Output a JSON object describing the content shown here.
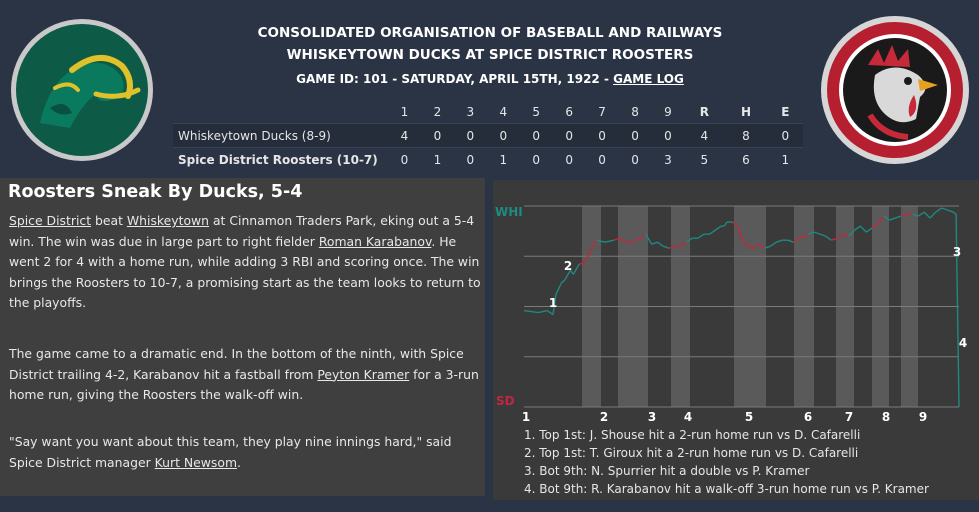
{
  "header": {
    "league": "CONSOLIDATED ORGANISATION OF BASEBALL AND RAILWAYS",
    "matchup": "WHISKEYTOWN DUCKS AT SPICE DISTRICT ROOSTERS",
    "game_info": "GAME ID: 101 - SATURDAY, APRIL 15TH, 1922 - ",
    "game_log_link": "GAME LOG"
  },
  "logos": {
    "away": {
      "icon": "duck-logo",
      "colors": [
        "#0f5a48",
        "#e3c12a"
      ]
    },
    "home": {
      "icon": "rooster-logo",
      "colors": [
        "#b51f2f",
        "#1b1b1b"
      ]
    }
  },
  "boxscore": {
    "columns": [
      "1",
      "2",
      "3",
      "4",
      "5",
      "6",
      "7",
      "8",
      "9",
      "R",
      "H",
      "E"
    ],
    "away": {
      "team": "Whiskeytown Ducks (8-9)",
      "values": [
        "4",
        "0",
        "0",
        "0",
        "0",
        "0",
        "0",
        "0",
        "0",
        "4",
        "8",
        "0"
      ]
    },
    "home": {
      "team": "Spice District Roosters (10-7)",
      "values": [
        "0",
        "1",
        "0",
        "1",
        "0",
        "0",
        "0",
        "0",
        "3",
        "5",
        "6",
        "1"
      ]
    }
  },
  "story": {
    "headline": "Roosters Sneak By Ducks, 5-4",
    "p1": {
      "home_link": "Spice District",
      "t1": " beat ",
      "away_link": "Whiskeytown",
      "t2": " at Cinnamon Traders Park, eking out a 5-4 win. The win was due in large part to right fielder ",
      "player_link": "Roman Karabanov",
      "t3": ". He went 2 for 4 with a home run, while adding 3 RBI and scoring once. The win brings the Roosters to 10-7, a promising start as the team looks to return to the playoffs."
    },
    "p2": {
      "t1": "The game came to a dramatic end. In the bottom of the ninth, with Spice District trailing 4-2, Karabanov hit a fastball from ",
      "pitcher_link": "Peyton Kramer",
      "t2": " for a 3-run home run, giving the Roosters the walk-off win."
    },
    "p3": {
      "t1": "\"Say want you want about this team, they play nine innings hard,\" said Spice District manager ",
      "manager_link": "Kurt Newsom",
      "t2": "."
    }
  },
  "chart_data": {
    "type": "line",
    "y_top_label": "WHI",
    "y_bottom_label": "SD",
    "innings": [
      "1",
      "2",
      "3",
      "4",
      "5",
      "6",
      "7",
      "8",
      "9"
    ],
    "colors": {
      "away": "#1f8a80",
      "home": "#c0283e",
      "shaded": "#5a5a5a"
    },
    "note": "win probability for Whiskeytown, 0 = SD win, 1 = WHI win",
    "series": [
      {
        "values": [
          [
            0.0,
            0.48
          ],
          [
            0.05,
            0.47
          ],
          [
            0.08,
            0.48
          ],
          [
            0.1,
            0.46
          ],
          [
            0.11,
            0.56
          ],
          [
            0.13,
            0.62
          ],
          [
            0.14,
            0.63
          ],
          [
            0.16,
            0.68
          ],
          [
            0.17,
            0.66
          ],
          [
            0.19,
            0.71
          ],
          [
            0.21,
            0.72
          ],
          [
            0.23,
            0.78
          ],
          [
            0.25,
            0.83
          ],
          [
            0.28,
            0.82
          ],
          [
            0.31,
            0.83
          ],
          [
            0.33,
            0.84
          ],
          [
            0.35,
            0.82
          ],
          [
            0.37,
            0.82
          ],
          [
            0.4,
            0.84
          ],
          [
            0.42,
            0.86
          ],
          [
            0.44,
            0.81
          ],
          [
            0.46,
            0.82
          ],
          [
            0.48,
            0.8
          ],
          [
            0.5,
            0.79
          ],
          [
            0.52,
            0.8
          ],
          [
            0.54,
            0.8
          ],
          [
            0.56,
            0.82
          ],
          [
            0.58,
            0.84
          ],
          [
            0.6,
            0.84
          ],
          [
            0.62,
            0.86
          ],
          [
            0.64,
            0.86
          ],
          [
            0.66,
            0.88
          ],
          [
            0.68,
            0.9
          ],
          [
            0.69,
            0.9
          ],
          [
            0.7,
            0.92
          ],
          [
            0.72,
            0.92
          ],
          [
            0.74,
            0.89
          ],
          [
            0.75,
            0.84
          ],
          [
            0.77,
            0.8
          ],
          [
            0.79,
            0.79
          ],
          [
            0.81,
            0.81
          ],
          [
            0.83,
            0.79
          ],
          [
            0.85,
            0.8
          ],
          [
            0.87,
            0.82
          ],
          [
            0.89,
            0.83
          ],
          [
            0.91,
            0.83
          ],
          [
            0.93,
            0.82
          ],
          [
            0.95,
            0.84
          ],
          [
            0.97,
            0.85
          ],
          [
            0.98,
            0.86
          ],
          [
            1.0,
            0.87
          ],
          [
            1.02,
            0.86
          ],
          [
            1.04,
            0.85
          ],
          [
            1.06,
            0.83
          ],
          [
            1.08,
            0.84
          ],
          [
            1.1,
            0.86
          ],
          [
            1.12,
            0.85
          ],
          [
            1.14,
            0.88
          ],
          [
            1.16,
            0.9
          ],
          [
            1.18,
            0.87
          ],
          [
            1.2,
            0.89
          ],
          [
            1.22,
            0.91
          ],
          [
            1.24,
            0.95
          ],
          [
            1.26,
            0.93
          ],
          [
            1.28,
            0.94
          ],
          [
            1.3,
            0.95
          ],
          [
            1.32,
            0.96
          ],
          [
            1.34,
            0.96
          ],
          [
            1.36,
            0.95
          ],
          [
            1.38,
            0.97
          ],
          [
            1.4,
            0.94
          ],
          [
            1.42,
            0.97
          ],
          [
            1.44,
            0.99
          ],
          [
            1.46,
            0.98
          ],
          [
            1.48,
            0.97
          ],
          [
            1.49,
            0.96
          ],
          [
            1.5,
            0.0
          ]
        ]
      }
    ],
    "scoring_markers": [
      "1",
      "2",
      "3",
      "4"
    ]
  },
  "scoring_plays": [
    "1. Top 1st: J. Shouse hit a 2-run home run vs D. Cafarelli",
    "2. Top 1st: T. Giroux hit a 2-run home run vs D. Cafarelli",
    "3. Bot 9th: N. Spurrier hit a double vs P. Kramer",
    "4. Bot 9th: R. Karabanov hit a walk-off 3-run home run vs P. Kramer"
  ]
}
